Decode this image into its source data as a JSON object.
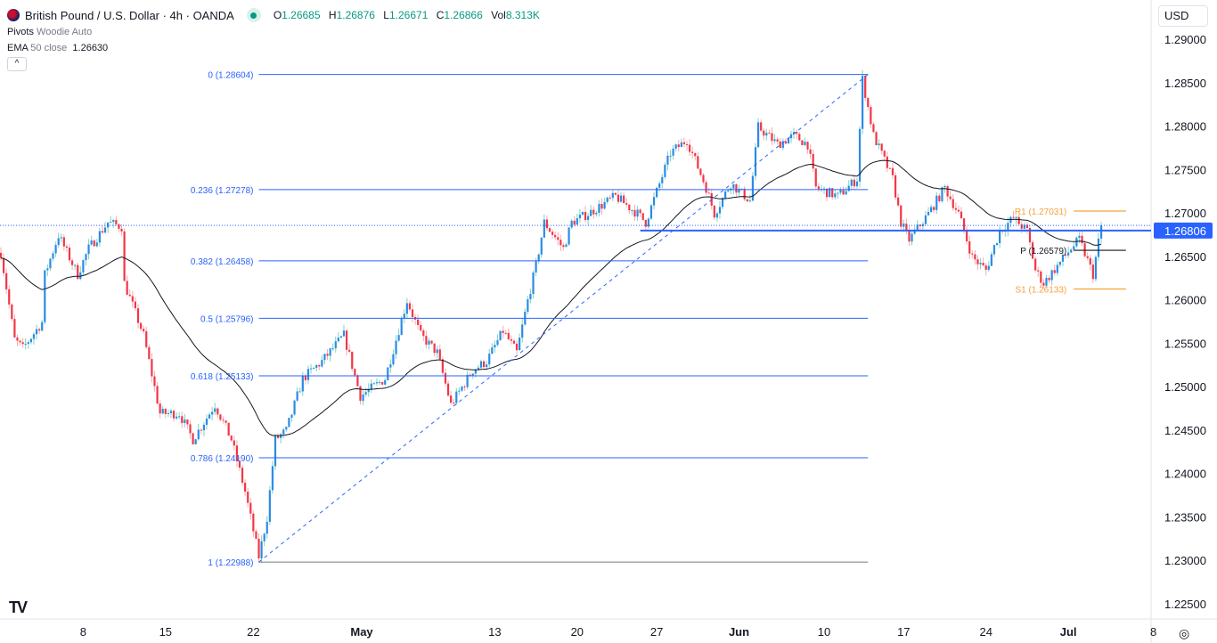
{
  "header": {
    "symbol": "British Pound / U.S. Dollar · 4h · OANDA",
    "ohlc": [
      {
        "k": "O",
        "v": "1.26685"
      },
      {
        "k": "H",
        "v": "1.26876"
      },
      {
        "k": "L",
        "v": "1.26671"
      },
      {
        "k": "C",
        "v": "1.26866"
      },
      {
        "k": "Vol",
        "v": "8.313K"
      }
    ],
    "pivots_name": "Pivots",
    "pivots_args": "Woodie Auto",
    "ema_name": "EMA",
    "ema_args": "50 close",
    "ema_value": "1.26630",
    "collapse_icon": "^",
    "currency": "USD",
    "logo": "TV",
    "settings_icon": "◎"
  },
  "colors": {
    "up": "#2a8be6",
    "up_wick": "#7dd3c0",
    "down": "#f23645",
    "fib": "#2962ff",
    "pivot_r": "#f7a13b",
    "pivot_p": "#131722",
    "ema": "#131722",
    "price_tag": "#2962ff"
  },
  "chart_data": {
    "type": "candlestick",
    "title": "British Pound / U.S. Dollar · 4h · OANDA",
    "candle_count": 402,
    "close_waypoints": [
      [
        0,
        1.2655
      ],
      [
        5,
        1.2555
      ],
      [
        8,
        1.2545
      ],
      [
        15,
        1.2575
      ],
      [
        16,
        1.263
      ],
      [
        21,
        1.2675
      ],
      [
        28,
        1.263
      ],
      [
        32,
        1.266
      ],
      [
        39,
        1.269
      ],
      [
        44,
        1.2685
      ],
      [
        45,
        1.262
      ],
      [
        52,
        1.256
      ],
      [
        58,
        1.247
      ],
      [
        65,
        1.247
      ],
      [
        70,
        1.244
      ],
      [
        78,
        1.248
      ],
      [
        84,
        1.244
      ],
      [
        89,
        1.238
      ],
      [
        94,
        1.2305
      ],
      [
        97,
        1.235
      ],
      [
        100,
        1.244
      ],
      [
        104,
        1.245
      ],
      [
        110,
        1.251
      ],
      [
        117,
        1.253
      ],
      [
        125,
        1.256
      ],
      [
        131,
        1.249
      ],
      [
        140,
        1.251
      ],
      [
        148,
        1.26
      ],
      [
        153,
        1.256
      ],
      [
        159,
        1.254
      ],
      [
        164,
        1.248
      ],
      [
        172,
        1.252
      ],
      [
        177,
        1.253
      ],
      [
        183,
        1.2565
      ],
      [
        188,
        1.254
      ],
      [
        192,
        1.26
      ],
      [
        195,
        1.264
      ],
      [
        198,
        1.269
      ],
      [
        205,
        1.266
      ],
      [
        208,
        1.269
      ],
      [
        214,
        1.27
      ],
      [
        224,
        1.272
      ],
      [
        232,
        1.27
      ],
      [
        235,
        1.269
      ],
      [
        244,
        1.277
      ],
      [
        250,
        1.2785
      ],
      [
        257,
        1.273
      ],
      [
        260,
        1.27
      ],
      [
        266,
        1.2735
      ],
      [
        273,
        1.2715
      ],
      [
        276,
        1.28
      ],
      [
        283,
        1.278
      ],
      [
        289,
        1.279
      ],
      [
        294,
        1.278
      ],
      [
        297,
        1.273
      ],
      [
        305,
        1.272
      ],
      [
        312,
        1.274
      ],
      [
        314,
        1.2855
      ],
      [
        318,
        1.279
      ],
      [
        325,
        1.274
      ],
      [
        328,
        1.269
      ],
      [
        331,
        1.267
      ],
      [
        338,
        1.27
      ],
      [
        344,
        1.273
      ],
      [
        349,
        1.27
      ],
      [
        354,
        1.265
      ],
      [
        359,
        1.2635
      ],
      [
        364,
        1.268
      ],
      [
        369,
        1.2695
      ],
      [
        374,
        1.268
      ],
      [
        377,
        1.2635
      ],
      [
        380,
        1.262
      ],
      [
        385,
        1.264
      ],
      [
        390,
        1.266
      ],
      [
        393,
        1.267
      ],
      [
        398,
        1.263
      ],
      [
        401,
        1.26866
      ]
    ],
    "ema_period": 50,
    "y_ticks": [
      "1.29000",
      "1.28500",
      "1.28000",
      "1.27500",
      "1.27000",
      "1.26500",
      "1.26000",
      "1.25500",
      "1.25000",
      "1.24500",
      "1.24000",
      "1.23500",
      "1.23000",
      "1.22500"
    ],
    "ylim": [
      1.2217,
      1.2935
    ],
    "x_ticks": [
      {
        "i": 30,
        "label": "8"
      },
      {
        "i": 60,
        "label": "15"
      },
      {
        "i": 92,
        "label": "22"
      },
      {
        "i": 131.5,
        "label": "May"
      },
      {
        "i": 180,
        "label": "13"
      },
      {
        "i": 210,
        "label": "20"
      },
      {
        "i": 239,
        "label": "27"
      },
      {
        "i": 269,
        "label": "Jun"
      },
      {
        "i": 300,
        "label": "10"
      },
      {
        "i": 329,
        "label": "17"
      },
      {
        "i": 359,
        "label": "24"
      },
      {
        "i": 389,
        "label": "Jul"
      },
      {
        "i": 420,
        "label": "8"
      }
    ],
    "fib": {
      "from_index": 94,
      "to_index": 316,
      "levels": [
        {
          "label": "0 (1.28604)",
          "price": 1.28604
        },
        {
          "label": "0.236 (1.27278)",
          "price": 1.27278
        },
        {
          "label": "0.382 (1.26458)",
          "price": 1.26458
        },
        {
          "label": "0.5 (1.25796)",
          "price": 1.25796
        },
        {
          "label": "0.618 (1.25133)",
          "price": 1.25133
        },
        {
          "label": "0.786 (1.24190)",
          "price": 1.2419
        },
        {
          "label": "1 (1.22988)",
          "price": 1.22988
        }
      ]
    },
    "support_line": {
      "price": 1.26806,
      "label": "1.26806",
      "from_index": 233
    },
    "last_price": 1.26866,
    "pivots": [
      {
        "label": "R1 (1.27031)",
        "price": 1.27031,
        "kind": "r"
      },
      {
        "label": "P (1.26579)",
        "price": 1.26579,
        "kind": "p"
      },
      {
        "label": "S1 (1.26133)",
        "price": 1.26133,
        "kind": "r"
      }
    ],
    "pivot_from_index": 391,
    "pivot_to_index": 410
  }
}
